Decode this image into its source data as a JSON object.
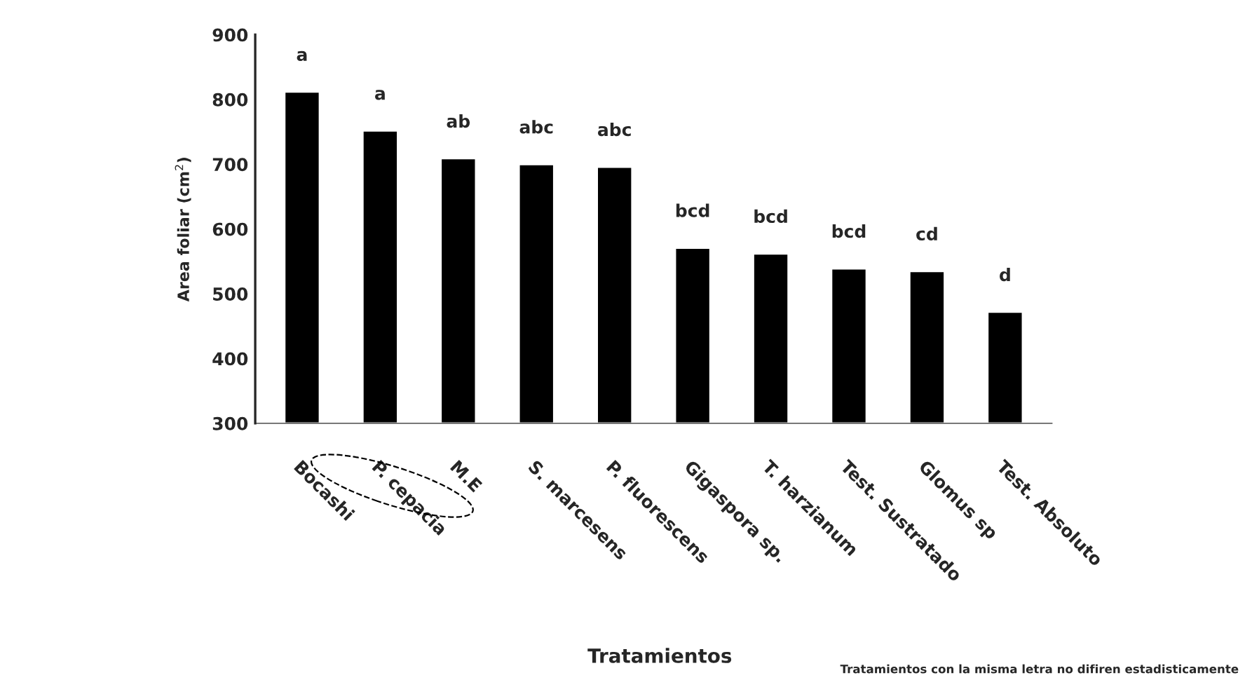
{
  "chart_data": {
    "type": "bar",
    "xlabel": "Tratamientos",
    "ylabel": "Area foliar (cm$^{2}$)",
    "categories": [
      "Bocashi",
      "P. cepacia",
      "M.E",
      "S. marcesens",
      "P. fluorescens",
      "Gigaspora sp.",
      "T. harzianum",
      "Test. Sustratado",
      "Glomus sp",
      "Test. Absoluto"
    ],
    "values": [
      812,
      752,
      709,
      700,
      696,
      571,
      562,
      539,
      535,
      472
    ],
    "color": "#000000",
    "ylim": [
      300,
      900
    ],
    "yticks": [
      300,
      400,
      500,
      600,
      700,
      800,
      900
    ],
    "grid": false,
    "annotations": [
      {
        "text": "a",
        "x": "Bocashi",
        "y": 812
      },
      {
        "text": "a",
        "x": "P. cepacia",
        "y": 752
      },
      {
        "text": "ab",
        "x": "M.E",
        "y": 709
      },
      {
        "text": "abc",
        "x": "S. marcesens",
        "y": 700
      },
      {
        "text": "abc",
        "x": "P. fluorescens",
        "y": 696
      },
      {
        "text": "bcd",
        "x": "Gigaspora sp.",
        "y": 571
      },
      {
        "text": "bcd",
        "x": "T. harzianum",
        "y": 562
      },
      {
        "text": "bcd",
        "x": "Test. Sustratado",
        "y": 539
      },
      {
        "text": "cd",
        "x": "Glomus sp",
        "y": 535
      },
      {
        "text": "d",
        "x": "Test. Absoluto",
        "y": 472
      },
      "Tratamientos con la misma letra no difiren estadisticamente"
    ]
  }
}
